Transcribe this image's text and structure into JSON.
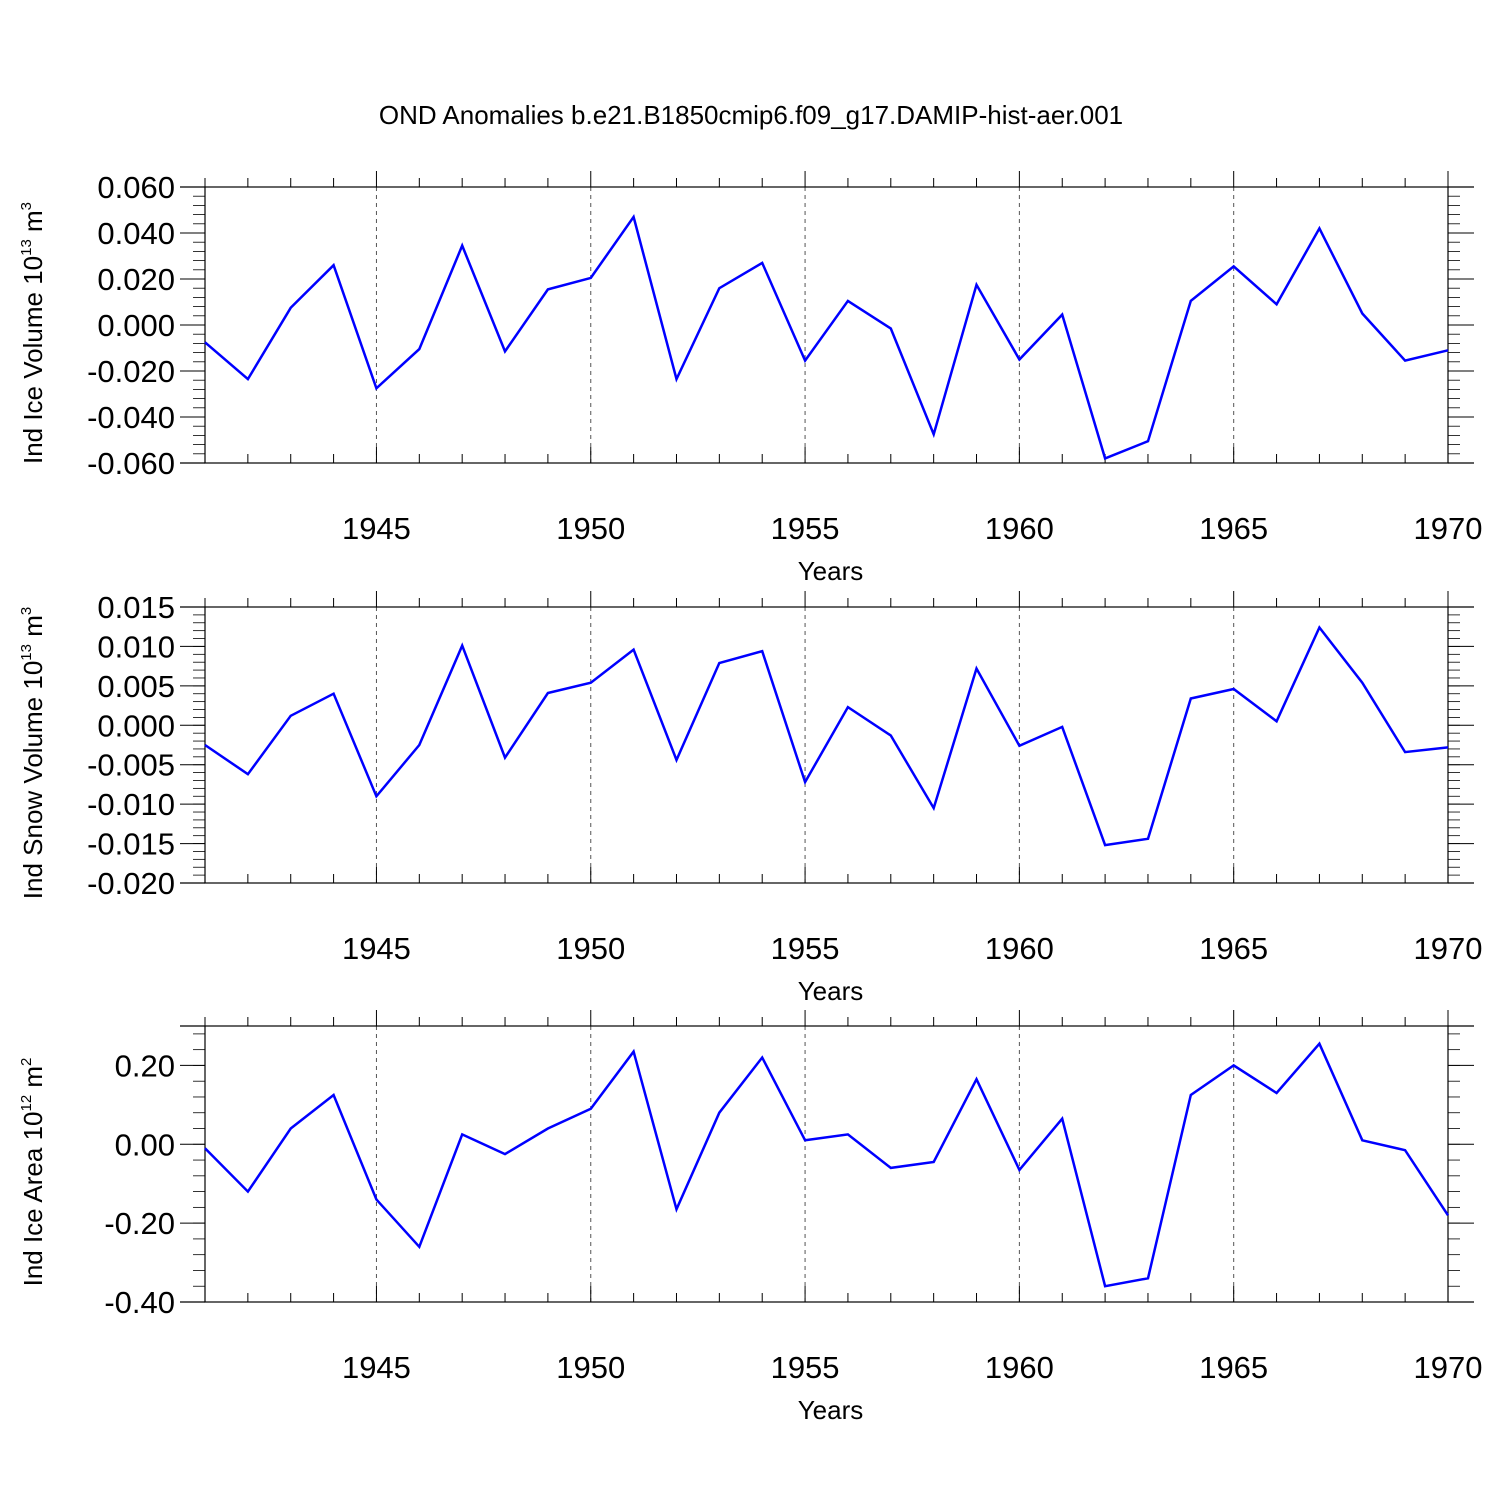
{
  "title": "OND Anomalies b.e21.B1850cmip6.f09_g17.DAMIP-hist-aer.001",
  "line_color": "#0000ff",
  "chart_data": [
    {
      "type": "line",
      "ylabel_main": "Ind Ice Volume 10",
      "ylabel_exp": "13",
      "ylabel_unit": " m",
      "ylabel_unit_exp": "3",
      "xlabel": "Years",
      "xlim": [
        1941,
        1970
      ],
      "ylim": [
        -0.06,
        0.06
      ],
      "yticks": [
        -0.06,
        -0.04,
        -0.02,
        0.0,
        0.02,
        0.04,
        0.06
      ],
      "ytick_labels": [
        "-0.060",
        "-0.040",
        "-0.020",
        "0.000",
        "0.020",
        "0.040",
        "0.060"
      ],
      "xticks": [
        1945,
        1950,
        1955,
        1960,
        1965,
        1970
      ],
      "xtick_labels": [
        "1945",
        "1950",
        "1955",
        "1960",
        "1965",
        "1970"
      ],
      "x": [
        1941,
        1942,
        1943,
        1944,
        1945,
        1946,
        1947,
        1948,
        1949,
        1950,
        1951,
        1952,
        1953,
        1954,
        1955,
        1956,
        1957,
        1958,
        1959,
        1960,
        1961,
        1962,
        1963,
        1964,
        1965,
        1966,
        1967,
        1968,
        1969,
        1970
      ],
      "values": [
        -0.0075,
        -0.0235,
        0.0075,
        0.026,
        -0.0275,
        -0.0105,
        0.0345,
        -0.0115,
        0.0155,
        0.0205,
        0.047,
        -0.0235,
        0.016,
        0.027,
        -0.0155,
        0.0105,
        -0.0015,
        -0.0475,
        0.0175,
        -0.015,
        0.0045,
        -0.058,
        -0.0505,
        0.0105,
        0.0255,
        0.009,
        0.042,
        0.005,
        -0.0155,
        -0.011
      ]
    },
    {
      "type": "line",
      "ylabel_main": "Ind Snow Volume 10",
      "ylabel_exp": "13",
      "ylabel_unit": " m",
      "ylabel_unit_exp": "3",
      "xlabel": "Years",
      "xlim": [
        1941,
        1970
      ],
      "ylim": [
        -0.02,
        0.015
      ],
      "yticks": [
        -0.02,
        -0.015,
        -0.01,
        -0.005,
        0.0,
        0.005,
        0.01,
        0.015
      ],
      "ytick_labels": [
        "-0.020",
        "-0.015",
        "-0.010",
        "-0.005",
        "0.000",
        "0.005",
        "0.010",
        "0.015"
      ],
      "xticks": [
        1945,
        1950,
        1955,
        1960,
        1965,
        1970
      ],
      "xtick_labels": [
        "1945",
        "1950",
        "1955",
        "1960",
        "1965",
        "1970"
      ],
      "x": [
        1941,
        1942,
        1943,
        1944,
        1945,
        1946,
        1947,
        1948,
        1949,
        1950,
        1951,
        1952,
        1953,
        1954,
        1955,
        1956,
        1957,
        1958,
        1959,
        1960,
        1961,
        1962,
        1963,
        1964,
        1965,
        1966,
        1967,
        1968,
        1969,
        1970
      ],
      "values": [
        -0.0025,
        -0.0062,
        0.0012,
        0.004,
        -0.009,
        -0.0025,
        0.0101,
        -0.0041,
        0.0041,
        0.0054,
        0.0096,
        -0.0044,
        0.0079,
        0.0094,
        -0.0072,
        0.0023,
        -0.0013,
        -0.0105,
        0.0072,
        -0.0026,
        -0.0002,
        -0.0152,
        -0.0144,
        0.0034,
        0.0046,
        0.0005,
        0.0124,
        0.0054,
        -0.0034,
        -0.0028
      ]
    },
    {
      "type": "line",
      "ylabel_main": "Ind Ice Area 10",
      "ylabel_exp": "12",
      "ylabel_unit": " m",
      "ylabel_unit_exp": "2",
      "xlabel": "Years",
      "xlim": [
        1941,
        1970
      ],
      "ylim": [
        -0.4,
        0.3
      ],
      "yticks": [
        -0.4,
        -0.2,
        0.0,
        0.2
      ],
      "ytick_labels": [
        "-0.40",
        "-0.20",
        "0.00",
        "0.20"
      ],
      "xticks": [
        1945,
        1950,
        1955,
        1960,
        1965,
        1970
      ],
      "xtick_labels": [
        "1945",
        "1950",
        "1955",
        "1960",
        "1965",
        "1970"
      ],
      "x": [
        1941,
        1942,
        1943,
        1944,
        1945,
        1946,
        1947,
        1948,
        1949,
        1950,
        1951,
        1952,
        1953,
        1954,
        1955,
        1956,
        1957,
        1958,
        1959,
        1960,
        1961,
        1962,
        1963,
        1964,
        1965,
        1966,
        1967,
        1968,
        1969,
        1970
      ],
      "values": [
        -0.01,
        -0.12,
        0.04,
        0.125,
        -0.14,
        -0.26,
        0.025,
        -0.025,
        0.04,
        0.09,
        0.235,
        -0.165,
        0.08,
        0.22,
        0.01,
        0.025,
        -0.06,
        -0.045,
        0.165,
        -0.065,
        0.065,
        -0.36,
        -0.34,
        0.125,
        0.2,
        0.13,
        0.255,
        0.01,
        -0.015,
        -0.18
      ]
    }
  ]
}
